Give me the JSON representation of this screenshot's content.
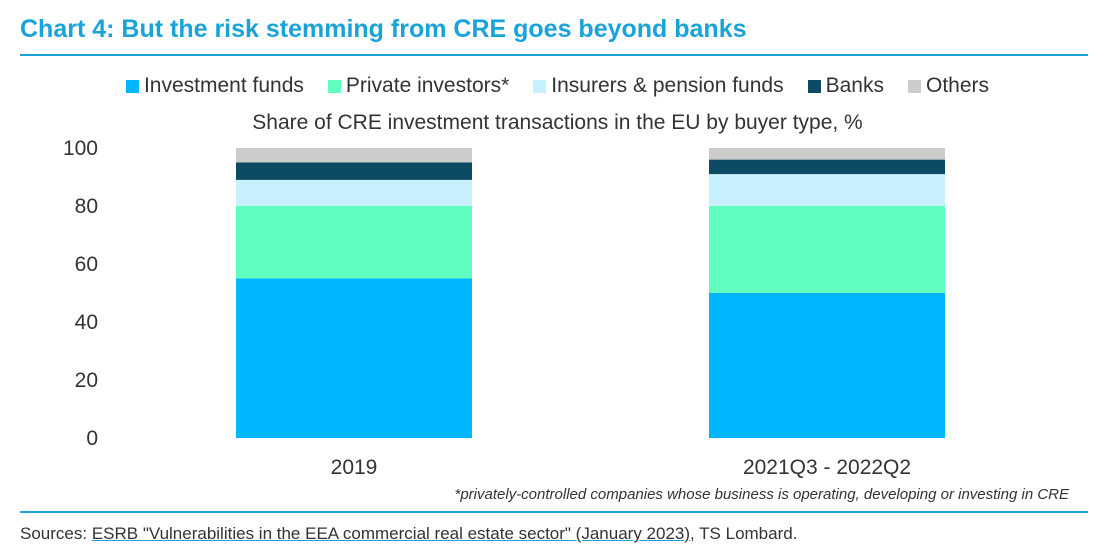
{
  "title": "Chart 4: But the risk stemming from CRE goes beyond banks",
  "legend": [
    {
      "label": "Investment funds",
      "color": "#00b6ff"
    },
    {
      "label": "Private investors*",
      "color": "#60ffbf"
    },
    {
      "label": "Insurers & pension funds",
      "color": "#c8f0ff"
    },
    {
      "label": "Banks",
      "color": "#0d4a63"
    },
    {
      "label": "Others",
      "color": "#cccccc"
    }
  ],
  "chart_data": {
    "type": "bar",
    "stacked": true,
    "title": "Share of CRE investment transactions in the EU by buyer type, %",
    "categories": [
      "2019",
      "2021Q3 - 2022Q2"
    ],
    "series": [
      {
        "name": "Investment funds",
        "values": [
          55,
          50
        ]
      },
      {
        "name": "Private investors*",
        "values": [
          25,
          30
        ]
      },
      {
        "name": "Insurers & pension funds",
        "values": [
          9,
          11
        ]
      },
      {
        "name": "Banks",
        "values": [
          6,
          5
        ]
      },
      {
        "name": "Others",
        "values": [
          5,
          4
        ]
      }
    ],
    "ylim": [
      0,
      100
    ],
    "yticks": [
      "0",
      "20",
      "40",
      "60",
      "80",
      "100"
    ],
    "grid": false,
    "legend_position": "top"
  },
  "footnote": "*privately-controlled companies whose business is operating, developing or investing in CRE",
  "sources": {
    "prefix": "Sources: ",
    "link": "ESRB \"Vulnerabilities in the EEA commercial real estate sector\" (January 2023)",
    "suffix": ", TS Lombard."
  }
}
